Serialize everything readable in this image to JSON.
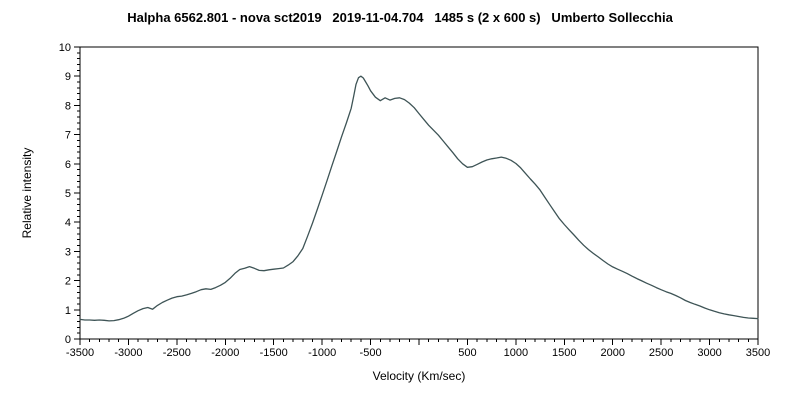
{
  "title": "Halpha 6562.801 - nova sct2019   2019-11-04.704   1485 s (2 x 600 s)   Umberto Sollecchia",
  "chart_data": {
    "type": "line",
    "title": "Halpha 6562.801 - nova sct2019   2019-11-04.704   1485 s (2 x 600 s)   Umberto Sollecchia",
    "x_axis": {
      "label": "Velocity (Km/sec)",
      "min": -3500,
      "max": 3500,
      "major_tick_step": 500,
      "minor_tick_step": 100,
      "zero_label_omitted": true,
      "tick_labels": [
        "-3500",
        "-3000",
        "-2500",
        "-2000",
        "-1500",
        "-1000",
        "-500",
        "500",
        "1000",
        "1500",
        "2000",
        "2500",
        "3000",
        "3500"
      ]
    },
    "y_axis": {
      "label": "Relative intensity",
      "min": 0,
      "max": 10,
      "major_tick_step": 1,
      "minor_tick_step": 0.2,
      "tick_labels": [
        "0",
        "1",
        "2",
        "3",
        "4",
        "5",
        "6",
        "7",
        "8",
        "9",
        "10"
      ]
    },
    "grid": false,
    "legend": false,
    "colors": {
      "line": "#3e5456",
      "axis": "#000000",
      "text": "#000000",
      "background": "#ffffff"
    },
    "points": [
      [
        -3500,
        0.67
      ],
      [
        -3450,
        0.65
      ],
      [
        -3400,
        0.65
      ],
      [
        -3350,
        0.64
      ],
      [
        -3300,
        0.65
      ],
      [
        -3250,
        0.64
      ],
      [
        -3200,
        0.62
      ],
      [
        -3150,
        0.63
      ],
      [
        -3100,
        0.66
      ],
      [
        -3050,
        0.71
      ],
      [
        -3000,
        0.78
      ],
      [
        -2950,
        0.88
      ],
      [
        -2900,
        0.97
      ],
      [
        -2850,
        1.04
      ],
      [
        -2800,
        1.08
      ],
      [
        -2750,
        1.02
      ],
      [
        -2700,
        1.15
      ],
      [
        -2650,
        1.25
      ],
      [
        -2600,
        1.33
      ],
      [
        -2550,
        1.4
      ],
      [
        -2500,
        1.45
      ],
      [
        -2450,
        1.47
      ],
      [
        -2400,
        1.51
      ],
      [
        -2350,
        1.56
      ],
      [
        -2300,
        1.62
      ],
      [
        -2250,
        1.69
      ],
      [
        -2200,
        1.72
      ],
      [
        -2150,
        1.7
      ],
      [
        -2100,
        1.76
      ],
      [
        -2050,
        1.84
      ],
      [
        -2000,
        1.94
      ],
      [
        -1950,
        2.08
      ],
      [
        -1900,
        2.25
      ],
      [
        -1850,
        2.38
      ],
      [
        -1800,
        2.42
      ],
      [
        -1750,
        2.48
      ],
      [
        -1700,
        2.42
      ],
      [
        -1650,
        2.35
      ],
      [
        -1600,
        2.34
      ],
      [
        -1550,
        2.37
      ],
      [
        -1500,
        2.39
      ],
      [
        -1450,
        2.41
      ],
      [
        -1400,
        2.43
      ],
      [
        -1350,
        2.53
      ],
      [
        -1300,
        2.65
      ],
      [
        -1250,
        2.85
      ],
      [
        -1200,
        3.1
      ],
      [
        -1150,
        3.52
      ],
      [
        -1100,
        3.97
      ],
      [
        -1050,
        4.44
      ],
      [
        -1000,
        4.92
      ],
      [
        -950,
        5.42
      ],
      [
        -900,
        5.92
      ],
      [
        -850,
        6.42
      ],
      [
        -800,
        6.92
      ],
      [
        -750,
        7.4
      ],
      [
        -700,
        7.9
      ],
      [
        -675,
        8.3
      ],
      [
        -650,
        8.72
      ],
      [
        -625,
        8.95
      ],
      [
        -600,
        9.0
      ],
      [
        -575,
        8.94
      ],
      [
        -550,
        8.8
      ],
      [
        -525,
        8.66
      ],
      [
        -500,
        8.5
      ],
      [
        -450,
        8.28
      ],
      [
        -400,
        8.16
      ],
      [
        -350,
        8.26
      ],
      [
        -300,
        8.18
      ],
      [
        -250,
        8.24
      ],
      [
        -200,
        8.26
      ],
      [
        -150,
        8.2
      ],
      [
        -100,
        8.08
      ],
      [
        -50,
        7.92
      ],
      [
        0,
        7.72
      ],
      [
        50,
        7.52
      ],
      [
        100,
        7.32
      ],
      [
        150,
        7.15
      ],
      [
        200,
        6.98
      ],
      [
        250,
        6.78
      ],
      [
        300,
        6.58
      ],
      [
        350,
        6.38
      ],
      [
        400,
        6.17
      ],
      [
        450,
        6.0
      ],
      [
        500,
        5.88
      ],
      [
        550,
        5.9
      ],
      [
        600,
        5.98
      ],
      [
        650,
        6.06
      ],
      [
        700,
        6.13
      ],
      [
        750,
        6.17
      ],
      [
        800,
        6.2
      ],
      [
        850,
        6.23
      ],
      [
        900,
        6.19
      ],
      [
        950,
        6.12
      ],
      [
        1000,
        6.01
      ],
      [
        1050,
        5.86
      ],
      [
        1100,
        5.67
      ],
      [
        1150,
        5.48
      ],
      [
        1200,
        5.3
      ],
      [
        1250,
        5.1
      ],
      [
        1300,
        4.85
      ],
      [
        1350,
        4.6
      ],
      [
        1400,
        4.36
      ],
      [
        1450,
        4.12
      ],
      [
        1500,
        3.92
      ],
      [
        1550,
        3.74
      ],
      [
        1600,
        3.56
      ],
      [
        1650,
        3.38
      ],
      [
        1700,
        3.21
      ],
      [
        1750,
        3.06
      ],
      [
        1800,
        2.93
      ],
      [
        1850,
        2.81
      ],
      [
        1900,
        2.69
      ],
      [
        1950,
        2.57
      ],
      [
        2000,
        2.47
      ],
      [
        2050,
        2.39
      ],
      [
        2100,
        2.32
      ],
      [
        2150,
        2.24
      ],
      [
        2200,
        2.15
      ],
      [
        2250,
        2.07
      ],
      [
        2300,
        1.99
      ],
      [
        2350,
        1.91
      ],
      [
        2400,
        1.84
      ],
      [
        2450,
        1.76
      ],
      [
        2500,
        1.69
      ],
      [
        2550,
        1.62
      ],
      [
        2600,
        1.56
      ],
      [
        2650,
        1.49
      ],
      [
        2700,
        1.41
      ],
      [
        2750,
        1.32
      ],
      [
        2800,
        1.25
      ],
      [
        2850,
        1.19
      ],
      [
        2900,
        1.13
      ],
      [
        2950,
        1.06
      ],
      [
        3000,
        1.0
      ],
      [
        3050,
        0.95
      ],
      [
        3100,
        0.9
      ],
      [
        3150,
        0.86
      ],
      [
        3200,
        0.83
      ],
      [
        3250,
        0.8
      ],
      [
        3300,
        0.77
      ],
      [
        3350,
        0.74
      ],
      [
        3400,
        0.72
      ],
      [
        3450,
        0.71
      ],
      [
        3500,
        0.7
      ]
    ]
  }
}
